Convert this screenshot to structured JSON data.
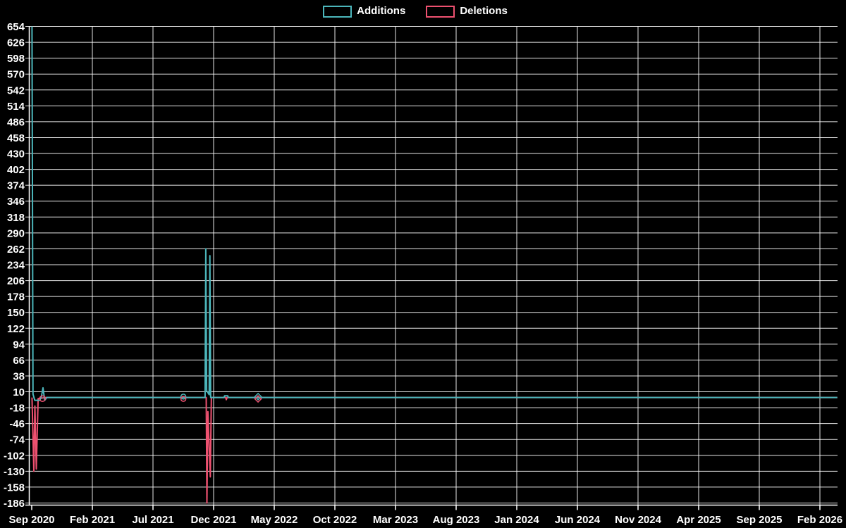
{
  "page": {
    "background": "#000000",
    "text_color": "#ffffff",
    "grid_color": "#ffffff"
  },
  "legend": {
    "additions": "Additions",
    "deletions": "Deletions"
  },
  "chart_data": {
    "type": "line",
    "title": "",
    "xlabel": "",
    "ylabel": "",
    "legend_position": "top-center",
    "grid": true,
    "x_tick_labels": [
      "Sep 2020",
      "Feb 2021",
      "Jul 2021",
      "Dec 2021",
      "May 2022",
      "Oct 2022",
      "Mar 2023",
      "Aug 2023",
      "Jan 2024",
      "Jun 2024",
      "Nov 2024",
      "Apr 2025",
      "Sep 2025",
      "Feb 2026"
    ],
    "y_axis": {
      "max": 654,
      "min": -186,
      "step": 28
    },
    "series": [
      {
        "name": "Additions",
        "color": "#4cb6bb",
        "points": [
          [
            0.1,
            654
          ],
          [
            0.45,
            6
          ],
          [
            1.1,
            -5
          ],
          [
            2.9,
            -5
          ],
          [
            3.5,
            2
          ],
          [
            4.05,
            17
          ],
          [
            4.65,
            -5
          ],
          [
            5.4,
            0
          ],
          [
            62.2,
            0
          ],
          [
            62.45,
            262
          ],
          [
            62.75,
            12
          ],
          [
            63.65,
            5
          ],
          [
            63.9,
            250
          ],
          [
            64.2,
            0
          ],
          [
            69.0,
            0
          ],
          [
            69.2,
            3
          ],
          [
            70.3,
            3
          ],
          [
            70.5,
            0
          ],
          [
            289.0,
            0
          ]
        ]
      },
      {
        "name": "Deletions",
        "color": "#ee5170",
        "points": [
          [
            0.1,
            0
          ],
          [
            0.75,
            -130
          ],
          [
            1.15,
            -15
          ],
          [
            1.65,
            -126
          ],
          [
            2.3,
            -2
          ],
          [
            5.0,
            0
          ],
          [
            62.6,
            0
          ],
          [
            62.85,
            -186
          ],
          [
            63.2,
            -25
          ],
          [
            64.05,
            -140
          ],
          [
            64.45,
            0
          ],
          [
            69.6,
            0
          ],
          [
            69.8,
            -4
          ],
          [
            70.1,
            0
          ],
          [
            289.0,
            0
          ]
        ]
      }
    ],
    "markers": [
      {
        "shape": "circle",
        "series": "Deletions",
        "week": 3.85,
        "value": -2,
        "r": 4.0
      },
      {
        "shape": "circle",
        "series": "Additions",
        "week": 54.4,
        "value": 1.5,
        "r": 3.5
      },
      {
        "shape": "circle",
        "series": "Deletions",
        "week": 54.4,
        "value": -2.5,
        "r": 3.5
      },
      {
        "shape": "diamond",
        "series": "Additions",
        "week": 81.2,
        "value": 1.5,
        "r": 4.5
      },
      {
        "shape": "diamond",
        "series": "Deletions",
        "week": 81.2,
        "value": -2.5,
        "r": 4.5
      }
    ],
    "notable_values": {
      "additions_peak_sep_2020": 654,
      "additions_peak_nov_2021": 262,
      "deletions_peak_sep_2020": -130,
      "deletions_peak_nov_2021": -186
    }
  }
}
